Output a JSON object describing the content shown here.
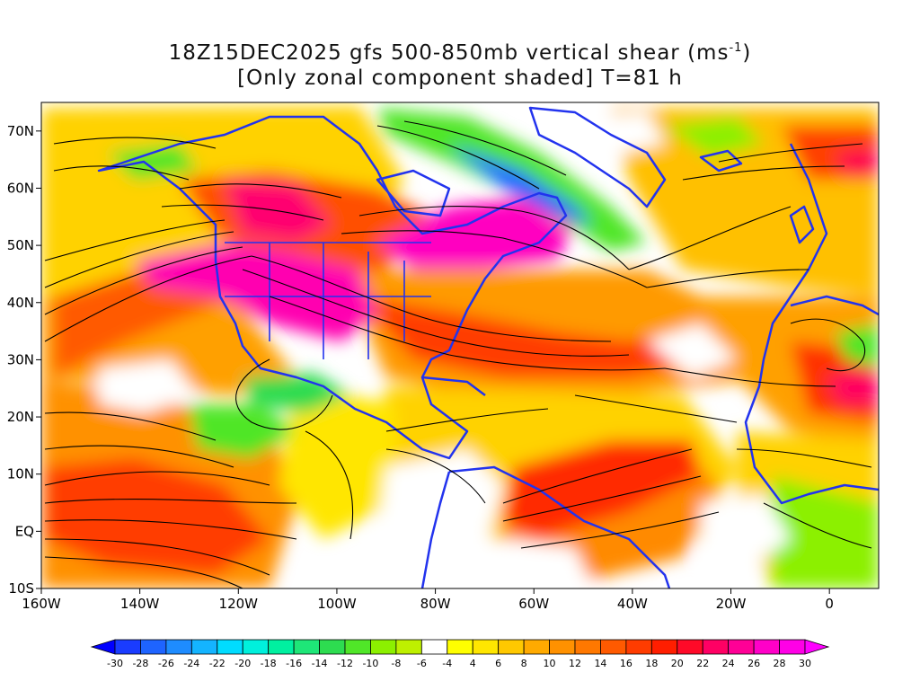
{
  "title": {
    "line1_prefix": "18Z15DEC2025 gfs 500-850mb vertical shear (ms",
    "line1_sup": "-1",
    "line1_suffix": ")",
    "line2": "[Only zonal component shaded] T=81 h"
  },
  "map": {
    "lon_range": [
      -160,
      10
    ],
    "lat_range": [
      -10,
      75
    ],
    "lat_ticks": [
      {
        "value": 70,
        "label": "70N"
      },
      {
        "value": 60,
        "label": "60N"
      },
      {
        "value": 50,
        "label": "50N"
      },
      {
        "value": 40,
        "label": "40N"
      },
      {
        "value": 30,
        "label": "30N"
      },
      {
        "value": 20,
        "label": "20N"
      },
      {
        "value": 10,
        "label": "10N"
      },
      {
        "value": 0,
        "label": "EQ"
      },
      {
        "value": -10,
        "label": "10S"
      }
    ],
    "lon_ticks": [
      {
        "value": -160,
        "label": "160W"
      },
      {
        "value": -140,
        "label": "140W"
      },
      {
        "value": -120,
        "label": "120W"
      },
      {
        "value": -100,
        "label": "100W"
      },
      {
        "value": -80,
        "label": "80W"
      },
      {
        "value": -60,
        "label": "60W"
      },
      {
        "value": -40,
        "label": "40W"
      },
      {
        "value": -20,
        "label": "20W"
      },
      {
        "value": 0,
        "label": "0"
      }
    ],
    "coastline_color": "#2233ee",
    "streamline_color": "#000000"
  },
  "colorbar": {
    "labels": [
      "-30",
      "-28",
      "-26",
      "-24",
      "-22",
      "-20",
      "-18",
      "-16",
      "-14",
      "-12",
      "-10",
      "-8",
      "-6",
      "-4",
      "4",
      "6",
      "8",
      "10",
      "12",
      "14",
      "16",
      "18",
      "20",
      "22",
      "24",
      "26",
      "28",
      "30"
    ],
    "colors": [
      "#0000ff",
      "#1a3cff",
      "#1e64ff",
      "#1e8cff",
      "#14b4ff",
      "#00dcff",
      "#00f0dc",
      "#00f0a0",
      "#1ee678",
      "#2ddc50",
      "#50e628",
      "#8cf000",
      "#bef000",
      "#ffffff",
      "#ffff00",
      "#ffe600",
      "#ffc800",
      "#ffaa00",
      "#ff9100",
      "#ff7800",
      "#ff5a00",
      "#ff3c00",
      "#ff1e00",
      "#ff0a28",
      "#ff0064",
      "#ff0096",
      "#ff00c8",
      "#ff00e6",
      "#ff00ff"
    ]
  }
}
